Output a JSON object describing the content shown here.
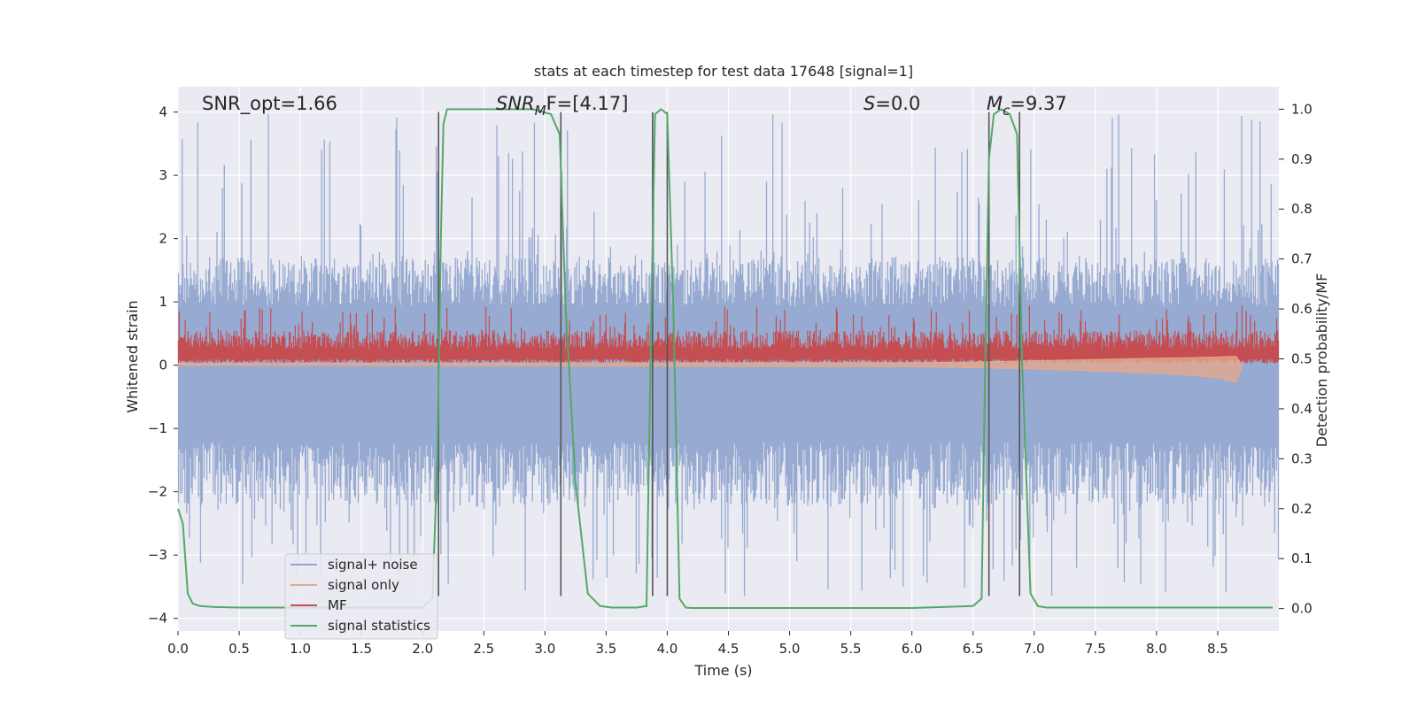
{
  "chart_data": {
    "type": "line",
    "title": "stats at each timestep for test data 17648 [signal=1]",
    "xlabel": "Time (s)",
    "ylabel": "Whitened strain",
    "y2label": "Detection probability/MF",
    "xlim": [
      0.0,
      9.0
    ],
    "ylim": [
      -4.2,
      4.4
    ],
    "y2lim": [
      -0.045,
      1.045
    ],
    "grid": true,
    "x_ticks": [
      0.0,
      0.5,
      1.0,
      1.5,
      2.0,
      2.5,
      3.0,
      3.5,
      4.0,
      4.5,
      5.0,
      5.5,
      6.0,
      6.5,
      7.0,
      7.5,
      8.0,
      8.5
    ],
    "x_tick_labels": [
      "0.0",
      "0.5",
      "1.0",
      "1.5",
      "2.0",
      "2.5",
      "3.0",
      "3.5",
      "4.0",
      "4.5",
      "5.0",
      "5.5",
      "6.0",
      "6.5",
      "7.0",
      "7.5",
      "8.0",
      "8.5"
    ],
    "y_ticks": [
      4,
      3,
      2,
      1,
      0,
      -1,
      -2,
      -3,
      -4
    ],
    "y_tick_labels": [
      "4",
      "3",
      "2",
      "1",
      "0",
      "−1",
      "−2",
      "−3",
      "−4"
    ],
    "y2_ticks": [
      1.0,
      0.9,
      0.8,
      0.7,
      0.6,
      0.5,
      0.4,
      0.3,
      0.2,
      0.1,
      0.0
    ],
    "y2_tick_labels": [
      "1.0",
      "0.9",
      "0.8",
      "0.7",
      "0.6",
      "0.5",
      "0.4",
      "0.3",
      "0.2",
      "0.1",
      "0.0"
    ],
    "annotations": {
      "snr_opt": "SNR_opt=1.66",
      "snr_mf_main": "SNR",
      "snr_mf_sub": "M",
      "snr_mf_rest": "F=[4.17]",
      "s_main": "S",
      "s_rest": "=0.0",
      "mc_main": "M",
      "mc_sub": "c",
      "mc_rest": "=9.37"
    },
    "legend": {
      "position": "lower-left",
      "entries": [
        {
          "label": "signal+ noise",
          "color": "#92a6cf"
        },
        {
          "label": "signal only",
          "color": "#e8a88a"
        },
        {
          "label": "MF",
          "color": "#c44e52"
        },
        {
          "label": "signal statistics",
          "color": "#55a868"
        }
      ]
    },
    "noise_envelope": {
      "series": "signal+ noise",
      "typical_upper": 1.7,
      "typical_lower": -2.2,
      "peak_upper": 4.0,
      "peak_lower": -3.65
    },
    "mf_band": {
      "series": "MF",
      "typical_low": 0.1,
      "typical_high": 0.55,
      "peak_high": 0.95
    },
    "signal_only": {
      "series": "signal only",
      "x": [
        0.0,
        6.0,
        6.5,
        7.0,
        7.5,
        8.0,
        8.3,
        8.5,
        8.65,
        8.7
      ],
      "upper": [
        0.03,
        0.04,
        0.05,
        0.07,
        0.09,
        0.11,
        0.12,
        0.13,
        0.14,
        0.0
      ],
      "lower": [
        0.0,
        -0.02,
        -0.04,
        -0.06,
        -0.09,
        -0.13,
        -0.16,
        -0.2,
        -0.27,
        0.0
      ]
    },
    "signal_statistics": {
      "series": "signal statistics",
      "axis": "right",
      "x": [
        0.0,
        0.04,
        0.08,
        0.12,
        0.18,
        0.3,
        0.5,
        1.0,
        1.5,
        2.0,
        2.08,
        2.12,
        2.15,
        2.17,
        2.2,
        2.3,
        2.6,
        2.9,
        3.05,
        3.12,
        3.17,
        3.25,
        3.35,
        3.45,
        3.55,
        3.75,
        3.83,
        3.87,
        3.9,
        3.95,
        4.0,
        4.05,
        4.1,
        4.15,
        4.2,
        4.5,
        5.0,
        5.5,
        6.0,
        6.5,
        6.57,
        6.6,
        6.63,
        6.67,
        6.73,
        6.8,
        6.86,
        6.9,
        6.97,
        7.03,
        7.1,
        7.3,
        8.0,
        8.95
      ],
      "y": [
        0.2,
        0.17,
        0.03,
        0.01,
        0.005,
        0.003,
        0.002,
        0.002,
        0.002,
        0.002,
        0.02,
        0.3,
        0.75,
        0.97,
        1.0,
        1.0,
        1.0,
        1.0,
        0.99,
        0.95,
        0.6,
        0.25,
        0.03,
        0.005,
        0.002,
        0.002,
        0.005,
        0.6,
        0.99,
        1.0,
        0.99,
        0.6,
        0.02,
        0.002,
        0.001,
        0.001,
        0.001,
        0.001,
        0.001,
        0.005,
        0.02,
        0.5,
        0.9,
        0.99,
        1.0,
        0.99,
        0.95,
        0.5,
        0.03,
        0.005,
        0.002,
        0.002,
        0.002,
        0.002
      ]
    },
    "vertical_markers": {
      "color": "#555555",
      "x": [
        2.13,
        3.13,
        3.88,
        4.0,
        6.63,
        6.88
      ],
      "y_range": [
        -3.65,
        4.0
      ]
    }
  }
}
